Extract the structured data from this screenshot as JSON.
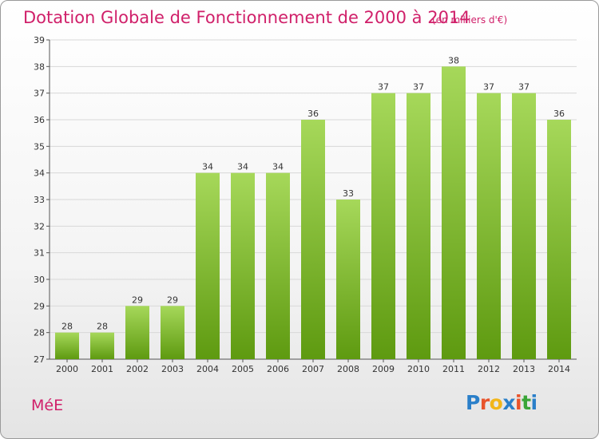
{
  "title": "Dotation Globale de Fonctionnement de 2000 à 2014",
  "subtitle": "(en milliers d'€)",
  "location": "MéE",
  "logo": {
    "text": "Proxiti",
    "colors": [
      "#2a7fc9",
      "#e8532b",
      "#f2b619",
      "#2a7fc9",
      "#e8532b",
      "#3aa537",
      "#2a7fc9"
    ]
  },
  "colors": {
    "accent": "#d0206a",
    "bar_top": "#a6d85a",
    "bar_bottom": "#5e9a10",
    "axis": "#555555",
    "grid": "#d8d8d8"
  },
  "chart_data": {
    "type": "bar",
    "categories": [
      "2000",
      "2001",
      "2002",
      "2003",
      "2004",
      "2005",
      "2006",
      "2007",
      "2008",
      "2009",
      "2010",
      "2011",
      "2012",
      "2013",
      "2014"
    ],
    "values": [
      28,
      28,
      29,
      29,
      34,
      34,
      34,
      36,
      33,
      37,
      37,
      38,
      37,
      37,
      36
    ],
    "ylim": [
      27,
      39
    ],
    "yticks": [
      27,
      28,
      29,
      30,
      31,
      32,
      33,
      34,
      35,
      36,
      37,
      38,
      39
    ],
    "grid": true,
    "data_labels": true
  }
}
